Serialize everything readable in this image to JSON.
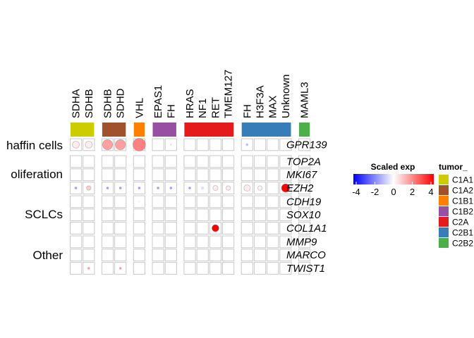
{
  "chart_data": {
    "type": "heatmap",
    "title": "",
    "column_groups": [
      {
        "tumor_type": "C1A1",
        "color": "#CCCC00",
        "columns": [
          "SDHA",
          "SDHB"
        ]
      },
      {
        "tumor_type": "C1A2",
        "color": "#A0522D",
        "columns": [
          "SDHB",
          "SDHD"
        ]
      },
      {
        "tumor_type": "C1B1",
        "color": "#FF7F00",
        "columns": [
          "VHL"
        ]
      },
      {
        "tumor_type": "C1B2",
        "color": "#984EA3",
        "columns": [
          "EPAS1",
          "FH"
        ]
      },
      {
        "tumor_type": "C2A",
        "color": "#E41A1C",
        "columns": [
          "HRAS",
          "NF1",
          "RET",
          "TMEM127"
        ]
      },
      {
        "tumor_type": "C2B1",
        "color": "#377EB8",
        "columns": [
          "FH",
          "H3F3A",
          "MAX",
          "Unknown"
        ]
      },
      {
        "tumor_type": "C2B2",
        "color": "#4DAF4A",
        "columns": [
          "MAML3"
        ]
      }
    ],
    "row_groups": [
      {
        "label": "haffin cells",
        "genes": [
          "GPR139"
        ]
      },
      {
        "label": "oliferation",
        "genes": [
          "TOP2A",
          "MKI67",
          "EZH2"
        ]
      },
      {
        "label": "SCLCs",
        "genes": [
          "CDH19",
          "SOX10",
          "COL1A1"
        ]
      },
      {
        "label": "Other",
        "genes": [
          "MMP9",
          "MARCO",
          "TWIST1"
        ]
      }
    ],
    "columns": [
      "SDHA",
      "SDHB",
      "SDHB",
      "SDHD",
      "VHL",
      "EPAS1",
      "FH",
      "HRAS",
      "NF1",
      "RET",
      "TMEM127",
      "FH",
      "H3F3A",
      "MAX",
      "Unknown",
      "MAML3"
    ],
    "rows": [
      "GPR139",
      "TOP2A",
      "MKI67",
      "EZH2",
      "CDH19",
      "SOX10",
      "COL1A1",
      "MMP9",
      "MARCO",
      "TWIST1"
    ],
    "scaled_exp": [
      [
        0.3,
        0.3,
        1.5,
        1.5,
        2.0,
        0,
        -0.5,
        0,
        0,
        0,
        0,
        -1.0,
        0,
        0,
        0,
        -0.5
      ],
      [
        0,
        0,
        0,
        0,
        0,
        0,
        0,
        0,
        0,
        0,
        0,
        0,
        0,
        0,
        0,
        0
      ],
      [
        0,
        0,
        0,
        0,
        0,
        0,
        0,
        0,
        0,
        0,
        0,
        0,
        0,
        0,
        0,
        0
      ],
      [
        -1.5,
        0.8,
        -1.5,
        -1.5,
        -1.5,
        -1.5,
        -1.5,
        -1.5,
        -0.5,
        0.3,
        0.3,
        0.3,
        0.2,
        0.0,
        4.0,
        -1.0
      ],
      [
        0,
        0,
        0,
        0,
        0.5,
        0,
        0,
        0,
        0,
        0,
        0,
        0,
        0,
        0,
        0,
        0
      ],
      [
        0,
        0,
        0,
        0,
        0,
        0,
        0,
        0,
        0,
        0,
        0,
        0,
        0,
        0,
        0,
        0
      ],
      [
        0,
        0,
        0,
        0,
        0,
        0,
        0,
        0,
        0,
        4.0,
        0,
        0,
        0,
        0,
        0,
        0
      ],
      [
        0,
        0,
        0,
        0,
        0,
        0,
        0,
        0,
        0,
        0,
        0,
        0,
        0,
        0,
        0,
        0
      ],
      [
        0,
        0,
        0,
        0,
        0,
        0,
        0,
        0,
        0,
        0,
        0,
        0,
        0,
        0,
        0,
        0
      ],
      [
        0,
        1.5,
        0,
        1.5,
        0,
        0,
        0,
        0,
        0,
        0,
        0,
        0,
        0,
        0,
        0,
        0
      ]
    ],
    "dot_size": [
      [
        0.55,
        0.55,
        0.8,
        0.8,
        1.0,
        0.05,
        0.15,
        0.05,
        0.05,
        0.05,
        0.05,
        0.2,
        0.05,
        0.05,
        0.05,
        0.1
      ],
      [
        0.08,
        0.12,
        0.08,
        0.08,
        0.05,
        0.08,
        0.05,
        0.05,
        0.12,
        0.12,
        0.12,
        0.15,
        0.15,
        0.05,
        0.05,
        0.05
      ],
      [
        0.05,
        0.08,
        0.05,
        0.05,
        0.05,
        0.05,
        0.05,
        0.05,
        0.08,
        0.1,
        0.05,
        0.15,
        0.1,
        0.05,
        0.05,
        0.05
      ],
      [
        0.2,
        0.35,
        0.2,
        0.2,
        0.2,
        0.2,
        0.2,
        0.2,
        0.25,
        0.4,
        0.35,
        0.5,
        0.35,
        0.3,
        0.65,
        0.15
      ],
      [
        0.08,
        0.05,
        0.08,
        0.08,
        0.12,
        0.05,
        0.05,
        0.05,
        0.05,
        0.05,
        0.05,
        0.05,
        0.05,
        0.05,
        0.05,
        0.05
      ],
      [
        0.05,
        0.05,
        0.05,
        0.1,
        0.12,
        0.05,
        0.05,
        0.05,
        0.05,
        0.05,
        0.05,
        0.05,
        0.05,
        0.05,
        0.05,
        0.05
      ],
      [
        0.08,
        0.05,
        0.05,
        0.05,
        0.1,
        0.05,
        0.05,
        0.05,
        0.05,
        0.55,
        0.05,
        0.05,
        0.05,
        0.05,
        0.05,
        0.05
      ],
      [
        0.05,
        0.05,
        0.05,
        0.1,
        0.05,
        0.05,
        0.05,
        0.05,
        0.05,
        0.05,
        0.05,
        0.05,
        0.05,
        0.05,
        0.05,
        0.08
      ],
      [
        0.05,
        0.05,
        0.05,
        0.08,
        0.08,
        0.05,
        0.05,
        0.05,
        0.05,
        0.05,
        0.05,
        0.05,
        0.05,
        0.05,
        0.05,
        0.05
      ],
      [
        0.08,
        0.2,
        0.05,
        0.2,
        0.05,
        0.05,
        0.05,
        0.05,
        0.05,
        0.05,
        0.05,
        0.05,
        0.05,
        0.05,
        0.05,
        0.05
      ]
    ],
    "color_legend": {
      "title": "Scaled exp",
      "range": [
        -4,
        4
      ],
      "ticks": [
        "-4",
        "-2",
        "0",
        "2",
        "4"
      ],
      "colors": [
        "#0000FF",
        "#FFFFFF",
        "#FF0000"
      ]
    },
    "group_legend": {
      "title": "tumor_",
      "entries": [
        "C1A1",
        "C1A2",
        "C1B1",
        "C1B2",
        "C2A",
        "C2B1",
        "C2B2"
      ]
    }
  }
}
